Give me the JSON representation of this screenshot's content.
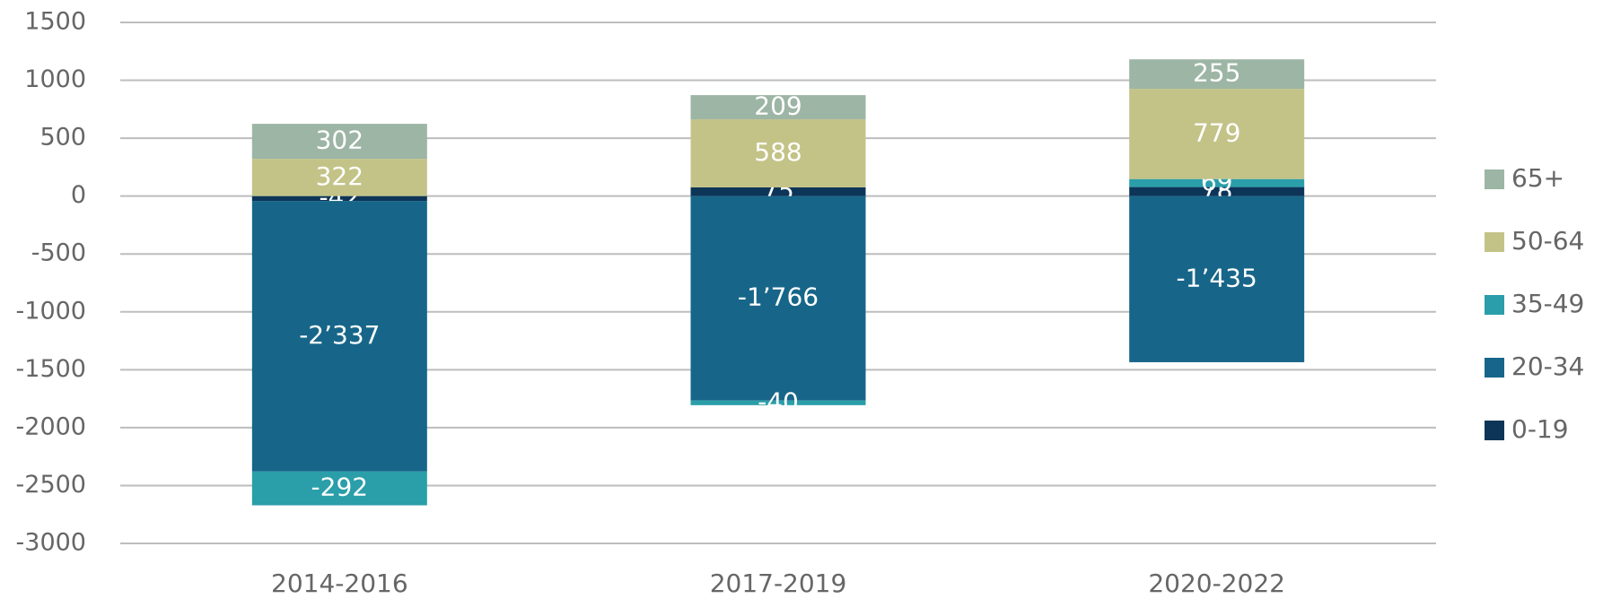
{
  "chart_data": {
    "type": "stacked_bar",
    "categories": [
      "2014-2016",
      "2017-2019",
      "2020-2022"
    ],
    "series": [
      {
        "name": "0-19",
        "color": "#0d3558",
        "values": [
          -42,
          75,
          78
        ]
      },
      {
        "name": "20-34",
        "color": "#176689",
        "values": [
          -2337,
          -1766,
          -1435
        ],
        "value_labels": [
          "-2’337",
          "-1’766",
          "-1’435"
        ]
      },
      {
        "name": "35-49",
        "color": "#2a9ea9",
        "values": [
          -292,
          -40,
          69
        ]
      },
      {
        "name": "50-64",
        "color": "#c3c388",
        "values": [
          322,
          588,
          779
        ]
      },
      {
        "name": "65+",
        "color": "#9db5a5",
        "values": [
          302,
          209,
          255
        ]
      }
    ],
    "ylim": [
      -3000,
      1500
    ],
    "yticks": [
      -3000,
      -2500,
      -2000,
      -1500,
      -1000,
      -500,
      0,
      500,
      1000,
      1500
    ],
    "grid": true,
    "legend": "right"
  }
}
